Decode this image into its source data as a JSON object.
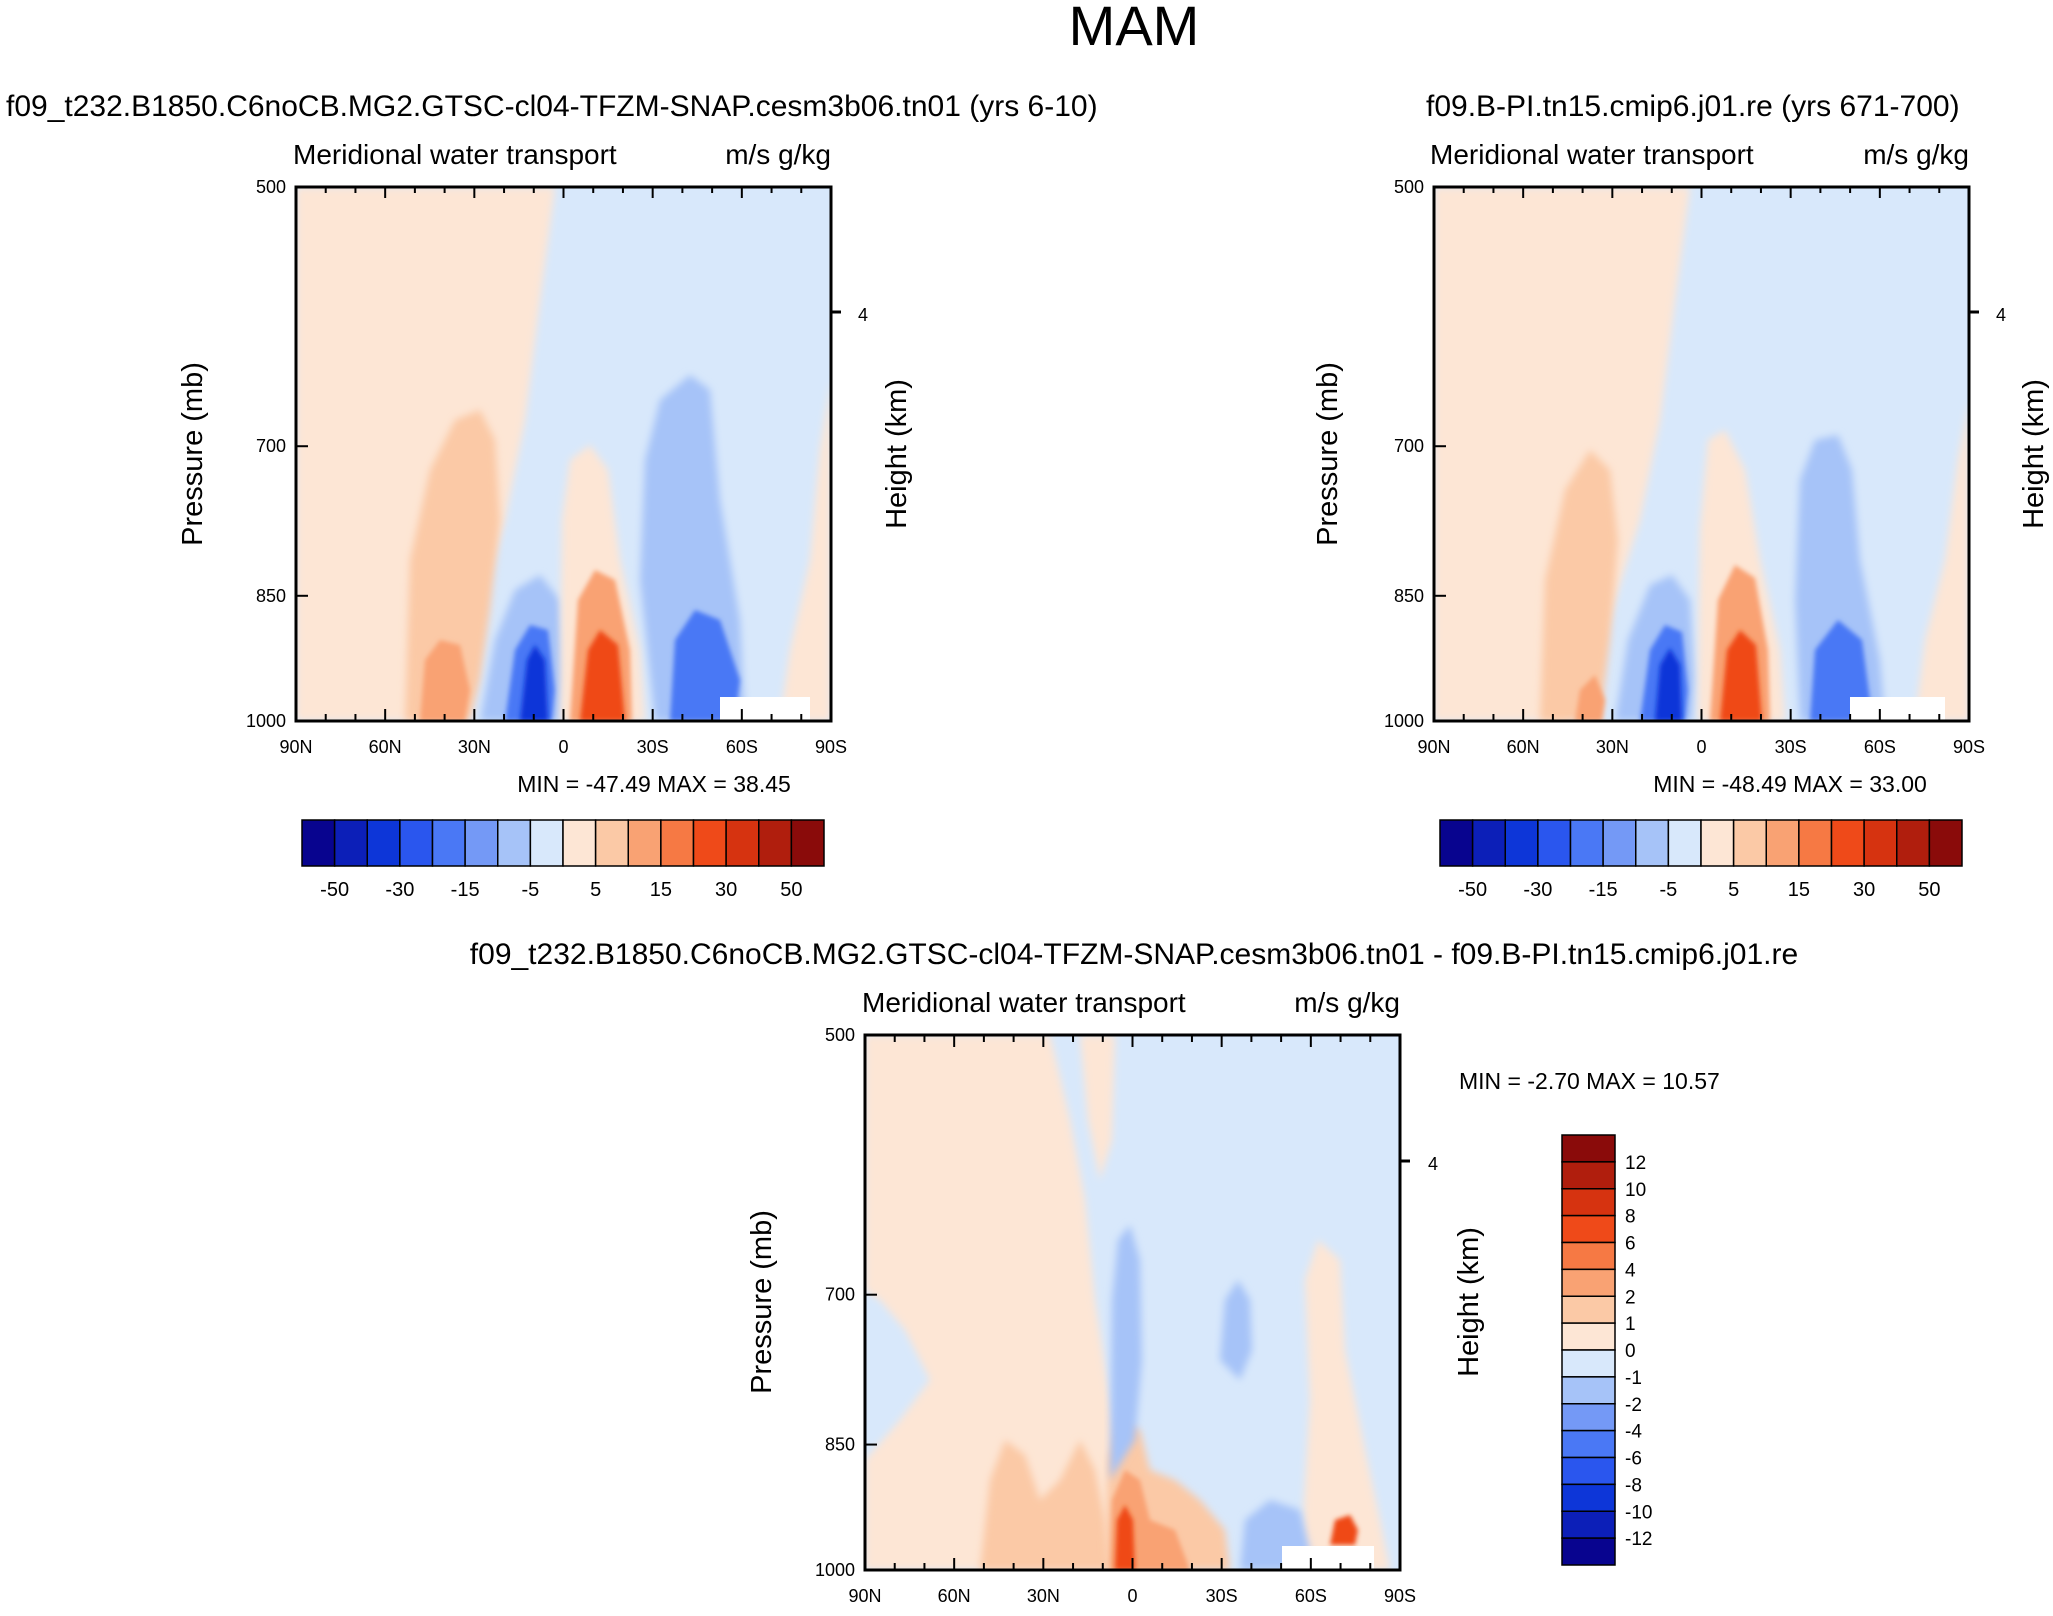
{
  "figure": {
    "title": "MAM"
  },
  "chart_data": [
    {
      "type": "heatmap",
      "panel": "top-left",
      "title": "f09_t232.B1850.C6noCB.MG2.GTSC-cl04-TFZM-SNAP.cesm3b06.tn01 (yrs 6-10)",
      "variable": "Meridional water transport",
      "units": "m/s g/kg",
      "ylabel": "Pressure (mb)",
      "ylabel_right": "Height (km)",
      "xticks": [
        "90N",
        "60N",
        "30N",
        "0",
        "30S",
        "60S",
        "90S"
      ],
      "yticks": [
        "500",
        "700",
        "850",
        "1000"
      ],
      "ylim": [
        1000,
        500
      ],
      "right_ticks": [
        "4"
      ],
      "stats": "MIN = -47.49   MAX =  38.45",
      "colorbar": {
        "orientation": "horizontal",
        "labels": [
          "-50",
          "-30",
          "-15",
          "-5",
          "5",
          "15",
          "30",
          "50"
        ],
        "colors": [
          "#08048f",
          "#0c1fb8",
          "#0d36d8",
          "#2a56ee",
          "#4a78f5",
          "#7499f6",
          "#a6c3f8",
          "#d8e8fb",
          "#fde6d5",
          "#fbc9a6",
          "#f9a273",
          "#f67944",
          "#ef4a19",
          "#d63310",
          "#b01e0d",
          "#8a0b0a"
        ]
      }
    },
    {
      "type": "heatmap",
      "panel": "top-right",
      "title": "f09.B-PI.tn15.cmip6.j01.re (yrs 671-700)",
      "variable": "Meridional water transport",
      "units": "m/s g/kg",
      "ylabel": "Pressure (mb)",
      "ylabel_right": "Height (km)",
      "xticks": [
        "90N",
        "60N",
        "30N",
        "0",
        "30S",
        "60S",
        "90S"
      ],
      "yticks": [
        "500",
        "700",
        "850",
        "1000"
      ],
      "ylim": [
        1000,
        500
      ],
      "right_ticks": [
        "4"
      ],
      "stats": "MIN = -48.49   MAX =  33.00",
      "colorbar": {
        "orientation": "horizontal",
        "labels": [
          "-50",
          "-30",
          "-15",
          "-5",
          "5",
          "15",
          "30",
          "50"
        ],
        "colors": [
          "#08048f",
          "#0c1fb8",
          "#0d36d8",
          "#2a56ee",
          "#4a78f5",
          "#7499f6",
          "#a6c3f8",
          "#d8e8fb",
          "#fde6d5",
          "#fbc9a6",
          "#f9a273",
          "#f67944",
          "#ef4a19",
          "#d63310",
          "#b01e0d",
          "#8a0b0a"
        ]
      }
    },
    {
      "type": "heatmap",
      "panel": "bottom-difference",
      "title": "f09_t232.B1850.C6noCB.MG2.GTSC-cl04-TFZM-SNAP.cesm3b06.tn01 - f09.B-PI.tn15.cmip6.j01.re",
      "variable": "Meridional water transport",
      "units": "m/s g/kg",
      "ylabel": "Pressure (mb)",
      "ylabel_right": "Height (km)",
      "xticks": [
        "90N",
        "60N",
        "30N",
        "0",
        "30S",
        "60S",
        "90S"
      ],
      "yticks": [
        "500",
        "700",
        "850",
        "1000"
      ],
      "ylim": [
        1000,
        500
      ],
      "right_ticks": [
        "4"
      ],
      "stats": "MIN =  -2.70   MAX =  10.57",
      "colorbar": {
        "orientation": "vertical",
        "labels": [
          "12",
          "10",
          "8",
          "6",
          "4",
          "2",
          "1",
          "0",
          "-1",
          "-2",
          "-4",
          "-6",
          "-8",
          "-10",
          "-12"
        ],
        "colors": [
          "#8a0b0a",
          "#b01e0d",
          "#d63310",
          "#ef4a19",
          "#f67944",
          "#f9a273",
          "#fbc9a6",
          "#fde6d5",
          "#d8e8fb",
          "#a6c3f8",
          "#7499f6",
          "#4a78f5",
          "#2a56ee",
          "#0d36d8",
          "#0c1fb8",
          "#08048f"
        ]
      }
    }
  ]
}
